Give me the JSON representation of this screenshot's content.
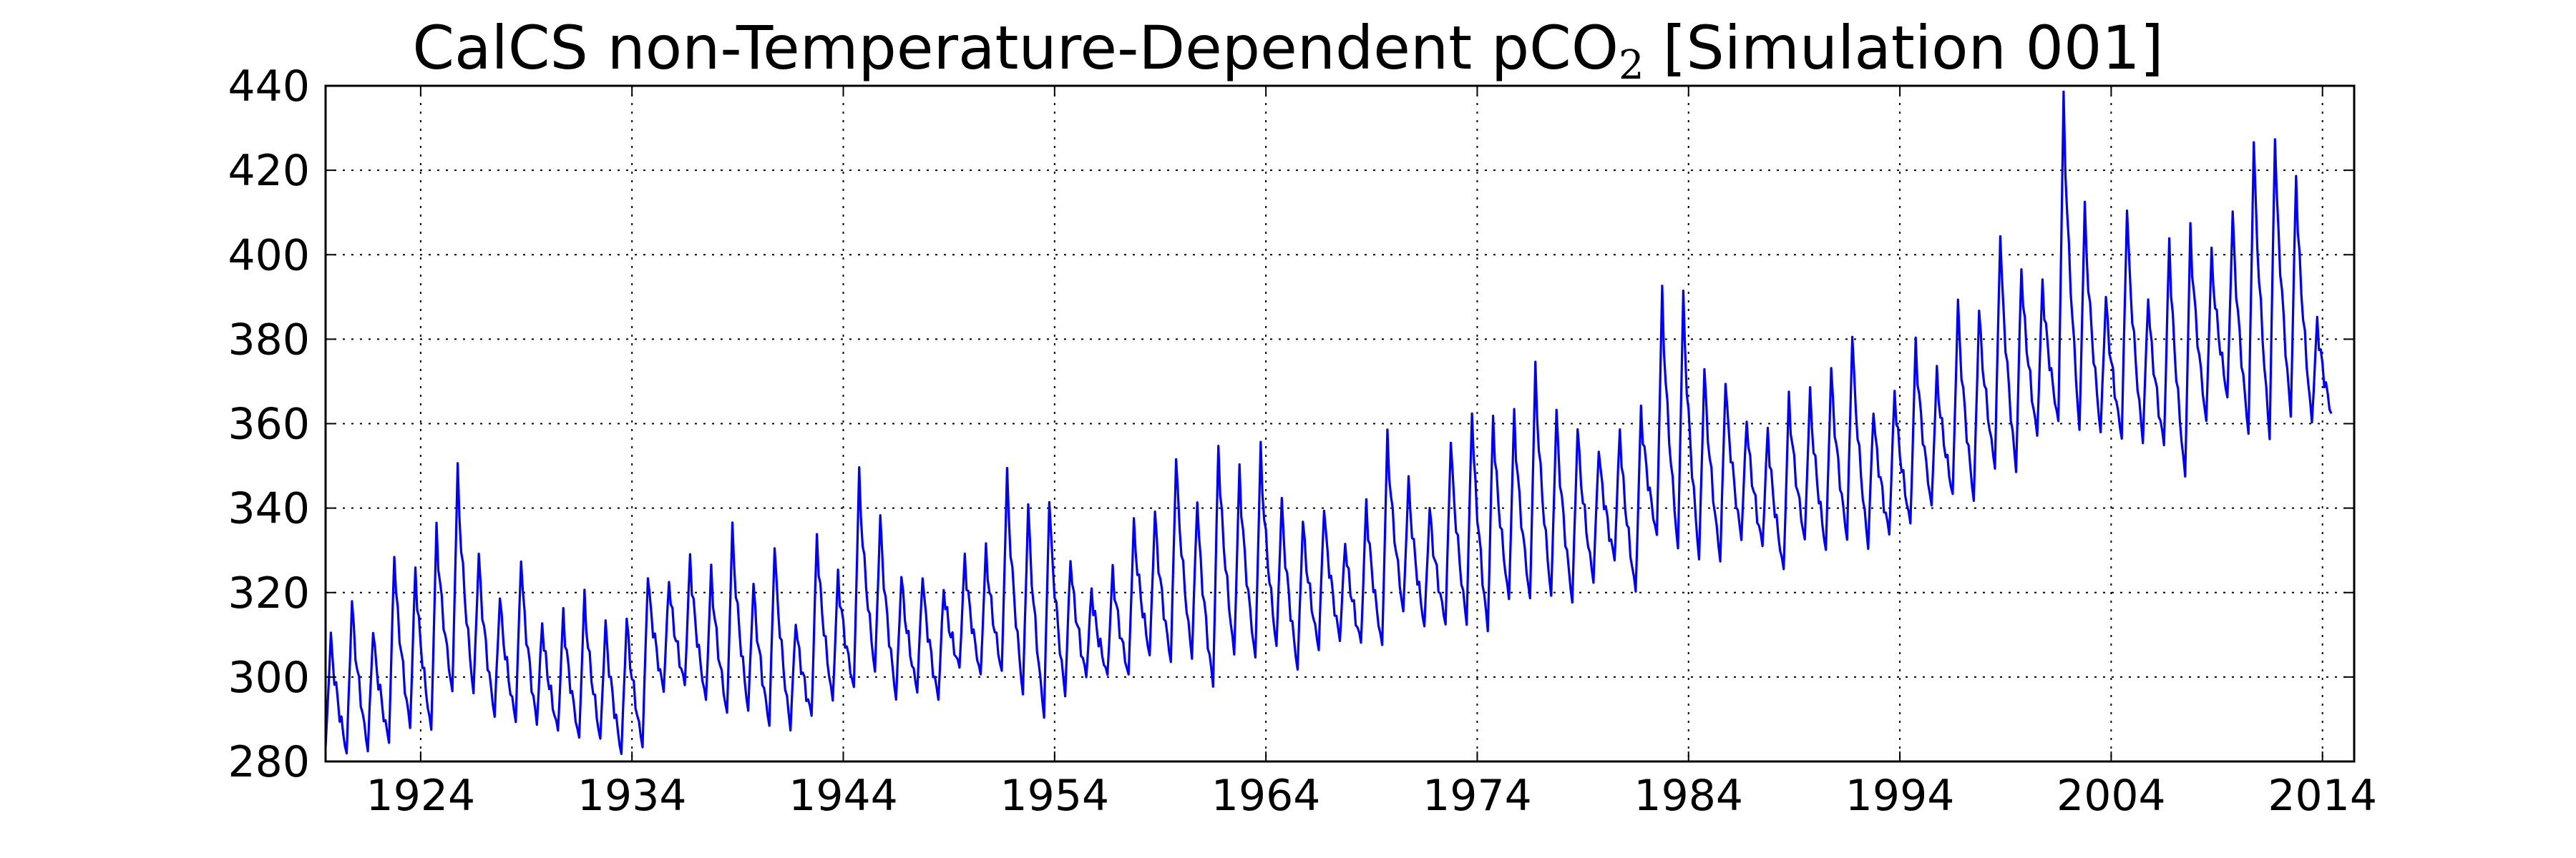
{
  "chart_data": {
    "type": "line",
    "title": "CalCS non-Temperature-Dependent pCO",
    "title_subscript": "2",
    "title_suffix": "[Simulation 001]",
    "xlabel": "",
    "ylabel": "",
    "xlim": [
      1919.5,
      2015.5
    ],
    "ylim": [
      280,
      440
    ],
    "xticks": [
      1924,
      1934,
      1944,
      1954,
      1964,
      1974,
      1984,
      1994,
      2004,
      2014
    ],
    "xtick_labels": [
      "1924",
      "1934",
      "1944",
      "1954",
      "1964",
      "1974",
      "1984",
      "1994",
      "2004",
      "2014"
    ],
    "yticks": [
      280,
      300,
      320,
      340,
      360,
      380,
      400,
      420,
      440
    ],
    "ytick_labels": [
      "280",
      "300",
      "320",
      "340",
      "360",
      "380",
      "400",
      "420",
      "440"
    ],
    "grid": true,
    "grid_style": "dotted",
    "legend": "none",
    "series": [
      {
        "color": "#0000ff",
        "x_start": 1919.5,
        "x_step": 1,
        "seasonal": true,
        "annual_peaks": [
          310,
          318,
          311,
          329,
          326,
          336,
          350,
          329,
          319,
          328,
          313,
          316,
          320,
          313,
          314,
          324,
          323,
          329,
          326,
          336,
          322,
          331,
          313,
          334,
          325,
          349,
          338,
          324,
          324,
          321,
          329,
          331,
          349,
          341,
          342,
          328,
          321,
          326,
          337,
          339,
          352,
          342,
          355,
          350,
          355,
          342,
          337,
          340,
          332,
          342,
          358,
          347,
          340,
          356,
          363,
          362,
          363,
          374,
          363,
          359,
          354,
          359,
          364,
          392,
          391,
          373,
          370,
          361,
          359,
          367,
          368,
          373,
          381,
          363,
          368,
          380,
          373,
          389,
          387,
          405,
          397,
          394,
          438,
          412,
          390,
          411,
          390,
          404,
          407,
          401,
          410,
          427,
          428,
          419,
          385
        ],
        "annual_troughs": [
          283,
          282,
          283,
          285,
          288,
          287,
          296,
          296,
          291,
          290,
          289,
          287,
          285,
          285,
          282,
          284,
          297,
          298,
          294,
          291,
          292,
          289,
          288,
          291,
          294,
          297,
          301,
          295,
          297,
          295,
          302,
          300,
          301,
          296,
          291,
          296,
          300,
          300,
          300,
          305,
          304,
          305,
          298,
          305,
          304,
          307,
          302,
          307,
          309,
          308,
          307,
          315,
          312,
          313,
          313,
          311,
          318,
          318,
          319,
          318,
          323,
          328,
          320,
          333,
          330,
          328,
          328,
          333,
          331,
          325,
          332,
          330,
          333,
          331,
          334,
          336,
          340,
          343,
          342,
          350,
          349,
          357,
          360,
          358,
          358,
          357,
          356,
          355,
          347,
          360,
          366,
          358,
          357,
          362,
          360
        ]
      }
    ]
  }
}
